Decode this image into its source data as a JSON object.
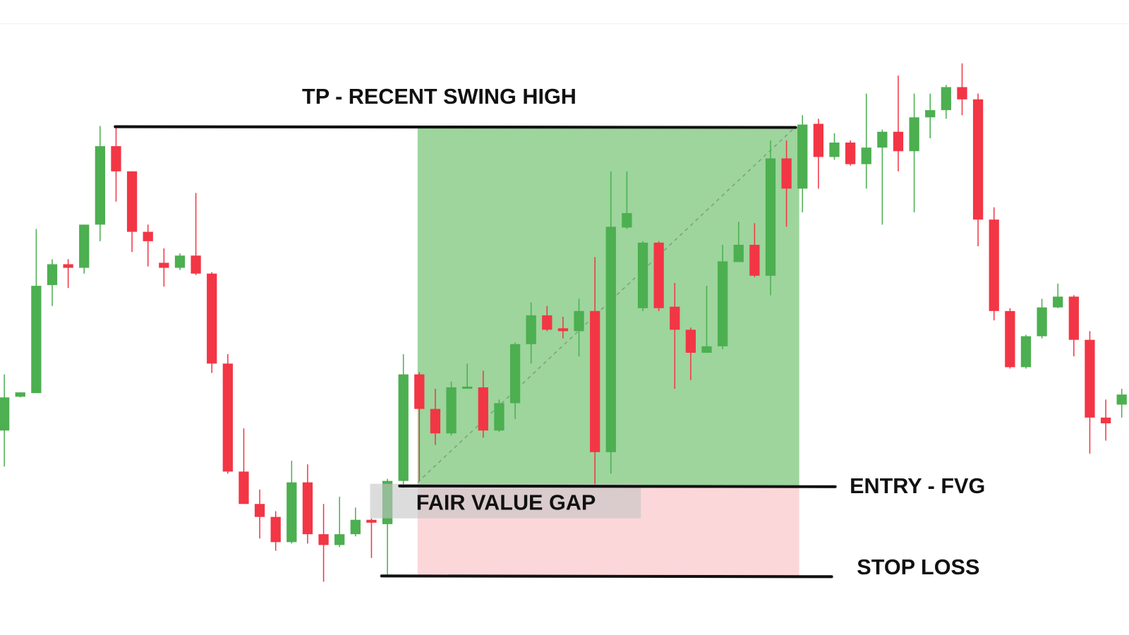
{
  "chart_data": {
    "type": "candlestick",
    "ylim": [
      0,
      882
    ],
    "up_color": "#4caf50",
    "down_color": "#f23645",
    "ohlc": [
      [
        284,
        362,
        234,
        330
      ],
      [
        331,
        337,
        330,
        337
      ],
      [
        336,
        564,
        336,
        485
      ],
      [
        486,
        522,
        457,
        515
      ],
      [
        515,
        522,
        482,
        510
      ],
      [
        510,
        570,
        502,
        570
      ],
      [
        570,
        707,
        547,
        679
      ],
      [
        679,
        707,
        602,
        644
      ],
      [
        644,
        644,
        532,
        560
      ],
      [
        560,
        570,
        512,
        547
      ],
      [
        517,
        537,
        484,
        510
      ],
      [
        510,
        530,
        507,
        527
      ],
      [
        527,
        614,
        500,
        502
      ],
      [
        502,
        504,
        364,
        377
      ],
      [
        377,
        390,
        224,
        227
      ],
      [
        227,
        287,
        182,
        182
      ],
      [
        182,
        202,
        134,
        164
      ],
      [
        164,
        172,
        117,
        129
      ],
      [
        129,
        242,
        127,
        212
      ],
      [
        212,
        237,
        127,
        140
      ],
      [
        140,
        182,
        74,
        125
      ],
      [
        125,
        192,
        122,
        140
      ],
      [
        140,
        177,
        137,
        160
      ],
      [
        160,
        162,
        107,
        156
      ],
      [
        154,
        217,
        84,
        214
      ],
      [
        214,
        390,
        204,
        362
      ],
      [
        362,
        365,
        214,
        314
      ],
      [
        314,
        342,
        264,
        280
      ],
      [
        280,
        352,
        277,
        344
      ],
      [
        342,
        377,
        342,
        345
      ],
      [
        344,
        367,
        274,
        284
      ],
      [
        284,
        327,
        282,
        322
      ],
      [
        322,
        406,
        300,
        404
      ],
      [
        404,
        462,
        377,
        444
      ],
      [
        444,
        457,
        422,
        424
      ],
      [
        426,
        442,
        412,
        422
      ],
      [
        422,
        467,
        387,
        450
      ],
      [
        450,
        525,
        207,
        254
      ],
      [
        254,
        644,
        224,
        567
      ],
      [
        566,
        644,
        564,
        586
      ],
      [
        454,
        547,
        450,
        545
      ],
      [
        545,
        547,
        450,
        454
      ],
      [
        456,
        489,
        342,
        424
      ],
      [
        424,
        427,
        354,
        392
      ],
      [
        392,
        485,
        392,
        401
      ],
      [
        401,
        542,
        397,
        519
      ],
      [
        518,
        574,
        518,
        542
      ],
      [
        542,
        572,
        497,
        499
      ],
      [
        499,
        687,
        472,
        662
      ],
      [
        662,
        687,
        567,
        620
      ],
      [
        620,
        722,
        587,
        709
      ],
      [
        710,
        717,
        620,
        664
      ],
      [
        664,
        697,
        660,
        684
      ],
      [
        684,
        687,
        652,
        654
      ],
      [
        654,
        752,
        620,
        677
      ],
      [
        677,
        702,
        570,
        699
      ],
      [
        699,
        777,
        644,
        672
      ],
      [
        672,
        752,
        587,
        719
      ],
      [
        719,
        752,
        690,
        729
      ],
      [
        729,
        764,
        717,
        761
      ],
      [
        761,
        794,
        722,
        744
      ],
      [
        744,
        752,
        540,
        577
      ],
      [
        577,
        594,
        437,
        450
      ],
      [
        450,
        454,
        370,
        372
      ],
      [
        372,
        417,
        370,
        415
      ],
      [
        415,
        467,
        412,
        455
      ],
      [
        455,
        488,
        454,
        470
      ],
      [
        470,
        472,
        387,
        410
      ],
      [
        410,
        422,
        252,
        302
      ],
      [
        302,
        327,
        270,
        294
      ],
      [
        320,
        342,
        302,
        334
      ]
    ],
    "annotations": [
      {
        "text": "TP - RECENT SWING HIGH",
        "level": 706
      },
      {
        "text": "ENTRY - FVG",
        "level": 207
      },
      {
        "text": "STOP LOSS",
        "level": 82
      },
      {
        "text": "FAIR VALUE GAP",
        "range": [
          162,
          210
        ]
      }
    ]
  }
}
